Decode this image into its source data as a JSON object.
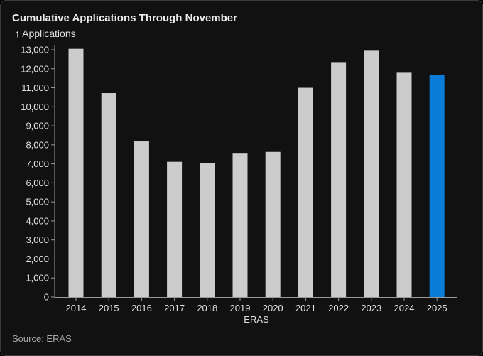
{
  "chart_data": {
    "type": "bar",
    "title": "Cumulative Applications Through November",
    "ylabel": "↑ Applications",
    "xlabel": "ERAS",
    "source": "Source: ERAS",
    "categories": [
      "2014",
      "2015",
      "2016",
      "2017",
      "2018",
      "2019",
      "2020",
      "2021",
      "2022",
      "2023",
      "2024",
      "2025"
    ],
    "values": [
      13050,
      10720,
      8180,
      7110,
      7060,
      7540,
      7630,
      11000,
      12350,
      12950,
      11790,
      11660
    ],
    "ylim": [
      0,
      13000
    ],
    "yticks": [
      0,
      1000,
      2000,
      3000,
      4000,
      5000,
      6000,
      7000,
      8000,
      9000,
      10000,
      11000,
      12000,
      13000
    ],
    "ytick_labels": [
      "0",
      "1,000",
      "2,000",
      "3,000",
      "4,000",
      "5,000",
      "6,000",
      "7,000",
      "8,000",
      "9,000",
      "10,000",
      "11,000",
      "12,000",
      "13,000"
    ],
    "grid": false,
    "colors": {
      "default_bar": "#cccccc",
      "highlight_bar": "#0a7bd6",
      "axis": "#9a9a9a"
    },
    "highlight_category": "2025"
  }
}
